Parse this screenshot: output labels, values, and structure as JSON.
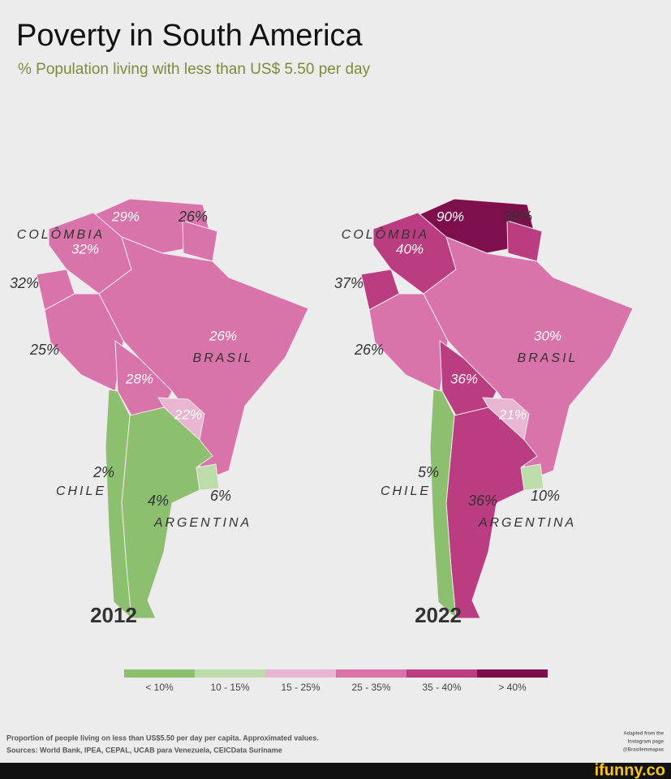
{
  "title": "Poverty in South America",
  "subtitle": "% Population living with less than US$ 5.50 per day",
  "maps": [
    {
      "year": "2012",
      "labels": [
        "29%",
        "26%",
        "COLÔMBIA",
        "32%",
        "32%",
        "25%",
        "26%",
        "BRASIL",
        "28%",
        "22%",
        "2%",
        "CHILE",
        "4%",
        "ARGENTINA",
        "6%"
      ]
    },
    {
      "year": "2022",
      "labels": [
        "90%",
        "38%",
        "COLÔMBIA",
        "40%",
        "37%",
        "26%",
        "30%",
        "BRASIL",
        "36%",
        "21%",
        "5%",
        "CHILE",
        "36%",
        "ARGENTINA",
        "10%"
      ]
    }
  ],
  "legend": [
    {
      "label": "< 10%",
      "color": "#8cc06f"
    },
    {
      "label": "10 - 15%",
      "color": "#bcdcaa"
    },
    {
      "label": "15 - 25%",
      "color": "#e8b6d0"
    },
    {
      "label": "25 - 35%",
      "color": "#d874aa"
    },
    {
      "label": "35 - 40%",
      "color": "#b93d80"
    },
    {
      "label": "> 40%",
      "color": "#7d0f4c"
    }
  ],
  "footer": {
    "note": "Proportion of people living on less than US$5.50 per day per capita. Approximated values.",
    "sources": "Sources: World Bank, IPEA, CEPAL, UCAB para Venezuela, CEICData Suriname",
    "credit": [
      "Adapted from the",
      "Instagram page",
      "@Brasilemmapas"
    ]
  },
  "watermark": "ifunny.co"
}
